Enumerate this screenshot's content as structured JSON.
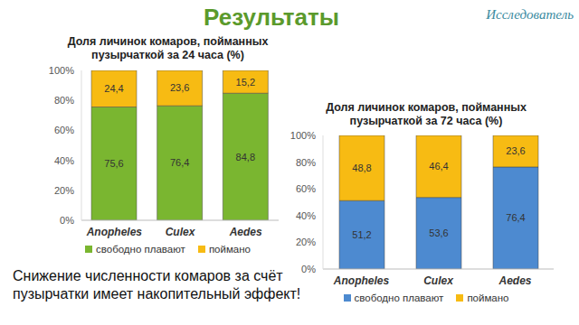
{
  "slide": {
    "title": "Результаты",
    "logo": "Исследователь",
    "note": "Снижение численности комаров за счёт пузырчатки имеет накопительный эффект!"
  },
  "chart_data": [
    {
      "type": "bar",
      "title": "Доля личинок комаров, пойманных пузырчаткой за 24 часа (%)",
      "categories": [
        "Anopheles",
        "Culex",
        "Aedes"
      ],
      "series": [
        {
          "name": "свободно плавают",
          "color": "#7ab630",
          "values": [
            75.6,
            76.4,
            84.8
          ],
          "value_labels": [
            "75,6",
            "76,4",
            "84,8"
          ]
        },
        {
          "name": "поймано",
          "color": "#f7bb13",
          "values": [
            24.4,
            23.6,
            15.2
          ],
          "value_labels": [
            "24,4",
            "23,6",
            "15,2"
          ]
        }
      ],
      "ylim": [
        0,
        100
      ],
      "yticks": [
        {
          "value": 0,
          "label": "0%"
        },
        {
          "value": 20,
          "label": "20%"
        },
        {
          "value": 40,
          "label": "40%"
        },
        {
          "value": 60,
          "label": "60%"
        },
        {
          "value": 80,
          "label": "80%"
        },
        {
          "value": 100,
          "label": "100%"
        }
      ],
      "stacked": true,
      "data_labels": true,
      "grid": false,
      "legend": "bottom"
    },
    {
      "type": "bar",
      "title": "Доля личинок комаров, пойманных пузырчаткой за 72 часа (%)",
      "categories": [
        "Anopheles",
        "Culex",
        "Aedes"
      ],
      "series": [
        {
          "name": "свободно плавают",
          "color": "#4d8ad0",
          "values": [
            51.2,
            53.6,
            76.4
          ],
          "value_labels": [
            "51,2",
            "53,6",
            "76,4"
          ]
        },
        {
          "name": "поймано",
          "color": "#f7bb13",
          "values": [
            48.8,
            46.4,
            23.6
          ],
          "value_labels": [
            "48,8",
            "46,4",
            "23,6"
          ]
        }
      ],
      "ylim": [
        0,
        100
      ],
      "yticks": [
        {
          "value": 0,
          "label": "0%"
        },
        {
          "value": 20,
          "label": "20%"
        },
        {
          "value": 40,
          "label": "40%"
        },
        {
          "value": 60,
          "label": "60%"
        },
        {
          "value": 80,
          "label": "80%"
        },
        {
          "value": 100,
          "label": "100%"
        }
      ],
      "stacked": true,
      "data_labels": true,
      "grid": false,
      "legend": "bottom"
    }
  ]
}
